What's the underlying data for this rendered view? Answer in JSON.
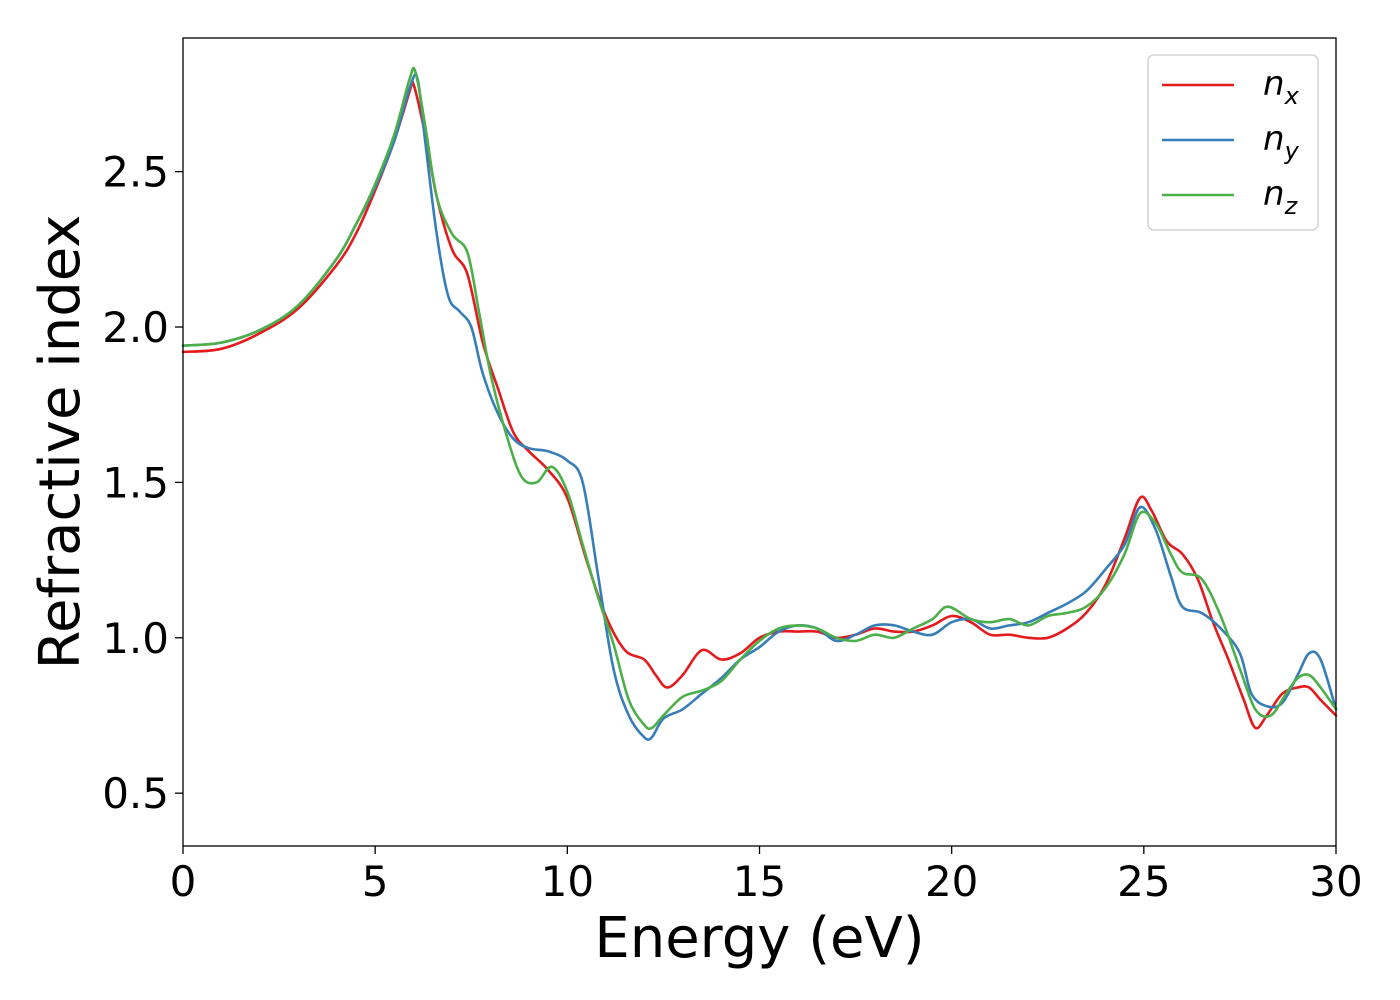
{
  "chart_data": {
    "type": "line",
    "title": "",
    "xlabel": "Energy (eV)",
    "ylabel": "Refractive index",
    "xlim": [
      0,
      30
    ],
    "ylim": [
      0.33,
      2.93
    ],
    "xticks": [
      0,
      5,
      10,
      15,
      20,
      25,
      30
    ],
    "xtick_labels": [
      "0",
      "5",
      "10",
      "15",
      "20",
      "25",
      "30"
    ],
    "yticks": [
      0.5,
      1.0,
      1.5,
      2.0,
      2.5
    ],
    "ytick_labels": [
      "0.5",
      "1.0",
      "1.5",
      "2.0",
      "2.5"
    ],
    "grid": false,
    "legend_position": "top-right",
    "series": [
      {
        "name": "n_x",
        "label_base": "n",
        "label_sub": "x",
        "color": "#e41a1c",
        "x": [
          0,
          1,
          2,
          3,
          4,
          4.5,
          5,
          5.5,
          5.9,
          6.0,
          6.3,
          6.6,
          7.0,
          7.4,
          7.8,
          8.2,
          8.6,
          9.0,
          9.5,
          10.0,
          10.5,
          11.0,
          11.5,
          12.0,
          12.3,
          12.6,
          13.0,
          13.5,
          14.0,
          14.5,
          15.0,
          15.5,
          16.0,
          16.5,
          17.0,
          17.5,
          18.0,
          18.5,
          19.0,
          19.5,
          20.0,
          20.5,
          21.0,
          21.5,
          22.0,
          22.5,
          23.0,
          23.5,
          24.0,
          24.5,
          24.9,
          25.2,
          25.6,
          26.0,
          26.4,
          26.8,
          27.2,
          27.6,
          27.9,
          28.2,
          28.6,
          29.0,
          29.3,
          29.6,
          30.0
        ],
        "y": [
          1.92,
          1.93,
          1.98,
          2.06,
          2.2,
          2.3,
          2.44,
          2.6,
          2.76,
          2.78,
          2.62,
          2.42,
          2.25,
          2.17,
          1.95,
          1.8,
          1.66,
          1.6,
          1.54,
          1.45,
          1.25,
          1.07,
          0.96,
          0.93,
          0.88,
          0.84,
          0.88,
          0.96,
          0.93,
          0.95,
          1.0,
          1.02,
          1.02,
          1.02,
          1.0,
          1.01,
          1.03,
          1.02,
          1.02,
          1.04,
          1.07,
          1.05,
          1.01,
          1.01,
          1.0,
          1.0,
          1.03,
          1.08,
          1.17,
          1.32,
          1.45,
          1.41,
          1.31,
          1.27,
          1.19,
          1.05,
          0.93,
          0.8,
          0.71,
          0.75,
          0.82,
          0.84,
          0.84,
          0.8,
          0.75
        ]
      },
      {
        "name": "n_y",
        "label_base": "n",
        "label_sub": "y",
        "color": "#377eb8",
        "x": [
          0,
          1,
          2,
          3,
          4,
          4.5,
          5,
          5.5,
          5.9,
          6.1,
          6.3,
          6.6,
          6.9,
          7.2,
          7.5,
          7.8,
          8.2,
          8.6,
          9.0,
          9.5,
          10.0,
          10.4,
          10.8,
          11.2,
          11.6,
          12.0,
          12.2,
          12.5,
          13.0,
          13.5,
          14.0,
          14.5,
          15.0,
          15.5,
          16.0,
          16.5,
          17.0,
          17.5,
          18.0,
          18.5,
          19.0,
          19.5,
          20.0,
          20.5,
          21.0,
          21.5,
          22.0,
          22.5,
          23.0,
          23.5,
          24.0,
          24.5,
          24.9,
          25.3,
          25.7,
          26.0,
          26.5,
          27.0,
          27.5,
          27.8,
          28.2,
          28.6,
          29.0,
          29.3,
          29.6,
          30.0
        ],
        "y": [
          1.94,
          1.95,
          1.99,
          2.07,
          2.22,
          2.33,
          2.45,
          2.6,
          2.77,
          2.8,
          2.6,
          2.3,
          2.1,
          2.05,
          2.0,
          1.85,
          1.72,
          1.64,
          1.61,
          1.6,
          1.57,
          1.5,
          1.2,
          0.9,
          0.75,
          0.68,
          0.68,
          0.74,
          0.77,
          0.82,
          0.87,
          0.93,
          0.97,
          1.02,
          1.04,
          1.03,
          0.99,
          1.01,
          1.04,
          1.04,
          1.02,
          1.01,
          1.05,
          1.06,
          1.03,
          1.04,
          1.05,
          1.08,
          1.11,
          1.15,
          1.22,
          1.3,
          1.42,
          1.35,
          1.2,
          1.1,
          1.08,
          1.03,
          0.95,
          0.82,
          0.78,
          0.79,
          0.88,
          0.95,
          0.93,
          0.77
        ]
      },
      {
        "name": "n_z",
        "label_base": "n",
        "label_sub": "z",
        "color": "#4daf4a",
        "x": [
          0,
          1,
          2,
          3,
          4,
          4.5,
          5,
          5.5,
          5.9,
          6.05,
          6.3,
          6.6,
          7.0,
          7.4,
          7.7,
          8.0,
          8.4,
          8.8,
          9.2,
          9.6,
          10.0,
          10.4,
          10.8,
          11.2,
          11.6,
          12.0,
          12.2,
          12.5,
          13.0,
          13.5,
          14.0,
          14.5,
          15.0,
          15.5,
          16.0,
          16.5,
          17.0,
          17.5,
          18.0,
          18.5,
          19.0,
          19.5,
          19.9,
          20.5,
          21.0,
          21.5,
          22.0,
          22.5,
          23.0,
          23.5,
          24.0,
          24.5,
          24.9,
          25.3,
          25.7,
          26.0,
          26.5,
          27.0,
          27.5,
          27.9,
          28.3,
          28.7,
          29.0,
          29.3,
          29.6,
          30.0
        ],
        "y": [
          1.94,
          1.95,
          1.99,
          2.07,
          2.22,
          2.33,
          2.46,
          2.62,
          2.8,
          2.82,
          2.65,
          2.42,
          2.3,
          2.24,
          2.05,
          1.85,
          1.66,
          1.52,
          1.5,
          1.55,
          1.47,
          1.3,
          1.13,
          0.98,
          0.8,
          0.72,
          0.71,
          0.75,
          0.81,
          0.83,
          0.86,
          0.93,
          0.99,
          1.03,
          1.04,
          1.03,
          1.0,
          0.99,
          1.01,
          1.0,
          1.03,
          1.06,
          1.1,
          1.06,
          1.05,
          1.06,
          1.04,
          1.07,
          1.08,
          1.1,
          1.16,
          1.27,
          1.4,
          1.37,
          1.27,
          1.21,
          1.19,
          1.07,
          0.9,
          0.77,
          0.75,
          0.82,
          0.87,
          0.88,
          0.84,
          0.77
        ]
      }
    ]
  }
}
